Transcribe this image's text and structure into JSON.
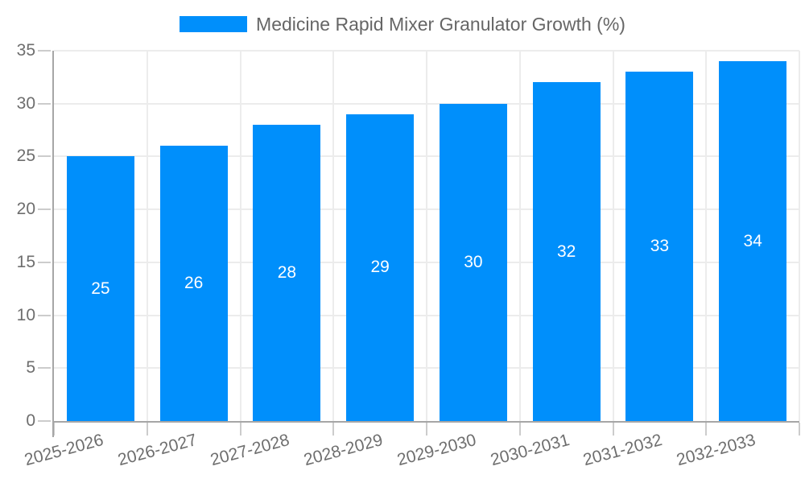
{
  "chart_data": {
    "type": "bar",
    "title": "Medicine Rapid Mixer Granulator Growth (%)",
    "categories": [
      "2025-2026",
      "2026-2027",
      "2027-2028",
      "2028-2029",
      "2029-2030",
      "2030-2031",
      "2031-2032",
      "2032-2033"
    ],
    "values": [
      25,
      26,
      28,
      29,
      30,
      32,
      33,
      34
    ],
    "xlabel": "",
    "ylabel": "",
    "ylim": [
      0,
      35
    ],
    "yticks": [
      0,
      5,
      10,
      15,
      20,
      25,
      30,
      35
    ],
    "grid": "on",
    "legend_position": "top-center",
    "bar_labels_position": "center-inside"
  },
  "legend": {
    "label": "Medicine Rapid Mixer Granulator Growth (%)",
    "swatch_color": "#008FFB"
  },
  "colors": {
    "bar": "#008FFB",
    "bar_label_text": "#ffffff",
    "grid": "#ececec",
    "axis_line": "#a6a6a6",
    "tick_mark": "#cccccc",
    "axis_label_text": "#6e6e6e",
    "legend_text": "#666666",
    "background": "#ffffff"
  }
}
